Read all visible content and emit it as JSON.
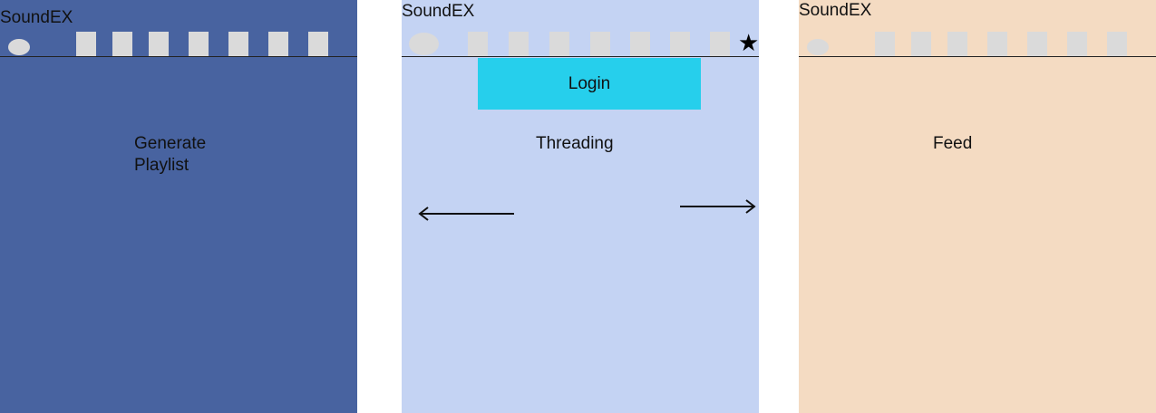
{
  "screens": [
    {
      "app_title": "SoundEX",
      "page_label": "Generate\nPlaylist",
      "background": "#4863A0"
    },
    {
      "app_title": "SoundEX",
      "login_label": "Login",
      "page_label": "Threading",
      "background": "#C4D3F3",
      "login_color": "#26CFEC",
      "star_icon": "star-icon",
      "back_icon": "arrow-left-icon",
      "forward_icon": "arrow-right-icon"
    },
    {
      "app_title": "SoundEX",
      "page_label": "Feed",
      "background": "#F4DBC2"
    }
  ]
}
